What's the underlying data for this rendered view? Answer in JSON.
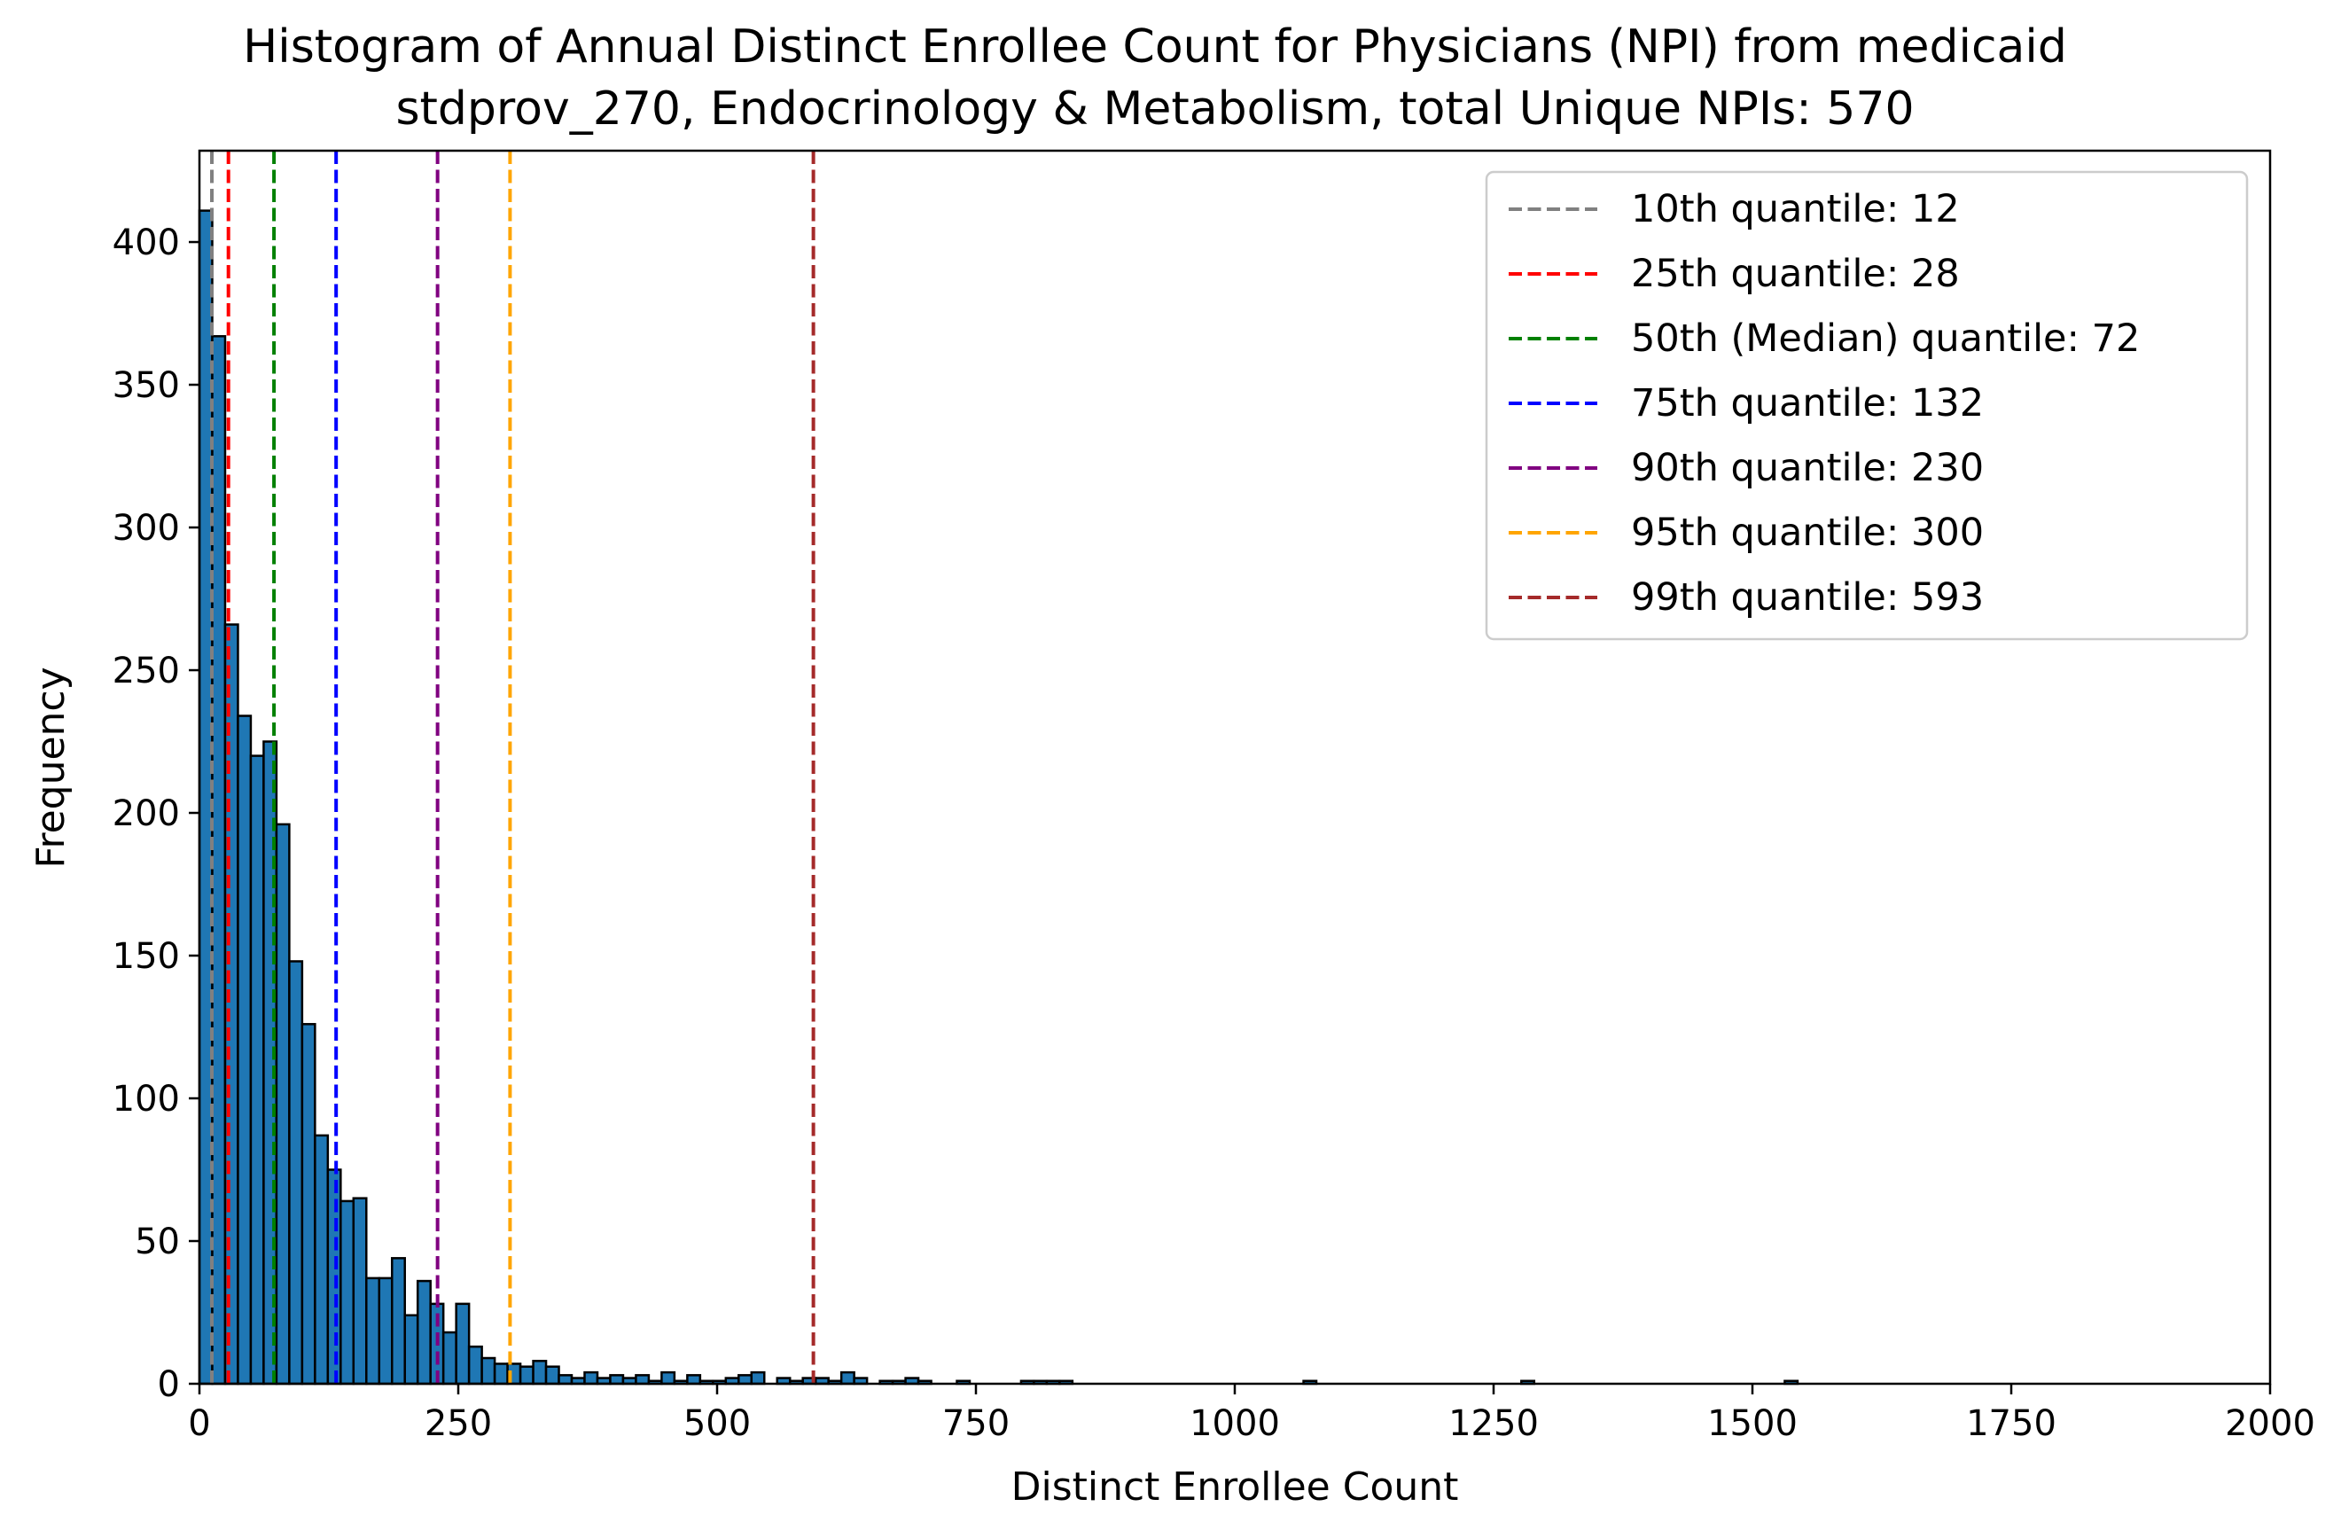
{
  "chart_data": {
    "type": "bar",
    "title_line1": "Histogram of Annual Distinct Enrollee Count for Physicians (NPI) from medicaid",
    "title_line2": "stdprov_270, Endocrinology & Metabolism, total Unique NPIs: 570",
    "xlabel": "Distinct Enrollee Count",
    "ylabel": "Frequency",
    "xlim": [
      0,
      2000
    ],
    "ylim": [
      0,
      432
    ],
    "xticks": [
      0,
      250,
      500,
      750,
      1000,
      1250,
      1500,
      1750,
      2000
    ],
    "yticks": [
      0,
      50,
      100,
      150,
      200,
      250,
      300,
      350,
      400
    ],
    "grid": false,
    "legend_position": "top-right",
    "bar_color": "#1f77b4",
    "bar_edge_color": "#000000",
    "bin_width": 12.4,
    "bins": [
      {
        "x0": 0,
        "count": 411
      },
      {
        "x0": 12.4,
        "count": 367
      },
      {
        "x0": 24.8,
        "count": 266
      },
      {
        "x0": 37.2,
        "count": 234
      },
      {
        "x0": 49.6,
        "count": 220
      },
      {
        "x0": 62.0,
        "count": 225
      },
      {
        "x0": 74.4,
        "count": 196
      },
      {
        "x0": 86.8,
        "count": 148
      },
      {
        "x0": 99.2,
        "count": 126
      },
      {
        "x0": 111.6,
        "count": 87
      },
      {
        "x0": 124.0,
        "count": 75
      },
      {
        "x0": 136.4,
        "count": 64
      },
      {
        "x0": 148.8,
        "count": 65
      },
      {
        "x0": 161.2,
        "count": 37
      },
      {
        "x0": 173.6,
        "count": 37
      },
      {
        "x0": 186.0,
        "count": 44
      },
      {
        "x0": 198.4,
        "count": 24
      },
      {
        "x0": 210.8,
        "count": 36
      },
      {
        "x0": 223.2,
        "count": 28
      },
      {
        "x0": 235.6,
        "count": 18
      },
      {
        "x0": 248.0,
        "count": 28
      },
      {
        "x0": 260.4,
        "count": 13
      },
      {
        "x0": 272.8,
        "count": 9
      },
      {
        "x0": 285.2,
        "count": 7
      },
      {
        "x0": 297.6,
        "count": 7
      },
      {
        "x0": 310.0,
        "count": 6
      },
      {
        "x0": 322.4,
        "count": 8
      },
      {
        "x0": 334.8,
        "count": 6
      },
      {
        "x0": 347.2,
        "count": 3
      },
      {
        "x0": 359.6,
        "count": 2
      },
      {
        "x0": 372.0,
        "count": 4
      },
      {
        "x0": 384.4,
        "count": 2
      },
      {
        "x0": 396.8,
        "count": 3
      },
      {
        "x0": 409.2,
        "count": 2
      },
      {
        "x0": 421.6,
        "count": 3
      },
      {
        "x0": 434.0,
        "count": 1
      },
      {
        "x0": 446.4,
        "count": 4
      },
      {
        "x0": 458.8,
        "count": 1
      },
      {
        "x0": 471.2,
        "count": 3
      },
      {
        "x0": 483.6,
        "count": 1
      },
      {
        "x0": 496.0,
        "count": 1
      },
      {
        "x0": 508.4,
        "count": 2
      },
      {
        "x0": 520.8,
        "count": 3
      },
      {
        "x0": 533.2,
        "count": 4
      },
      {
        "x0": 558.0,
        "count": 2
      },
      {
        "x0": 570.4,
        "count": 1
      },
      {
        "x0": 582.8,
        "count": 2
      },
      {
        "x0": 595.2,
        "count": 2
      },
      {
        "x0": 607.6,
        "count": 1
      },
      {
        "x0": 620.0,
        "count": 4
      },
      {
        "x0": 632.4,
        "count": 2
      },
      {
        "x0": 657.2,
        "count": 1
      },
      {
        "x0": 669.6,
        "count": 1
      },
      {
        "x0": 682.0,
        "count": 2
      },
      {
        "x0": 694.4,
        "count": 1
      },
      {
        "x0": 731.6,
        "count": 1
      },
      {
        "x0": 793.6,
        "count": 1
      },
      {
        "x0": 806.0,
        "count": 1
      },
      {
        "x0": 818.4,
        "count": 1
      },
      {
        "x0": 830.8,
        "count": 1
      },
      {
        "x0": 1066.4,
        "count": 1
      },
      {
        "x0": 1276.8,
        "count": 1
      },
      {
        "x0": 1531.2,
        "count": 1
      }
    ],
    "quantiles": [
      {
        "label": "10th quantile: 12",
        "value": 12,
        "color": "#808080"
      },
      {
        "label": "25th quantile: 28",
        "value": 28,
        "color": "#ff0000"
      },
      {
        "label": "50th (Median) quantile: 72",
        "value": 72,
        "color": "#008000"
      },
      {
        "label": "75th quantile: 132",
        "value": 132,
        "color": "#0000ff"
      },
      {
        "label": "90th quantile: 230",
        "value": 230,
        "color": "#800080"
      },
      {
        "label": "95th quantile: 300",
        "value": 300,
        "color": "#ffa500"
      },
      {
        "label": "99th quantile: 593",
        "value": 593,
        "color": "#a52a2a"
      }
    ]
  }
}
